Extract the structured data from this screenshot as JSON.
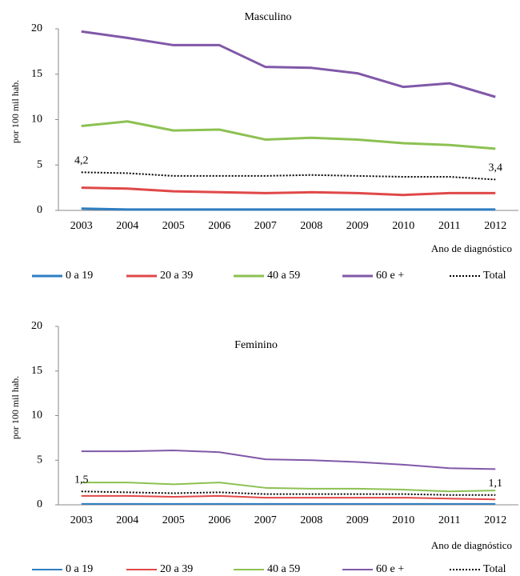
{
  "chart_data": [
    {
      "type": "line",
      "title": "Masculino",
      "y_label": "por 100 mil hab.",
      "x_label": "Ano de diagnóstico",
      "categories": [
        "2003",
        "2004",
        "2005",
        "2006",
        "2007",
        "2008",
        "2009",
        "2010",
        "2011",
        "2012"
      ],
      "ylim": [
        0,
        20
      ],
      "yticks": [
        0,
        5,
        10,
        15,
        20
      ],
      "grid": false,
      "series": [
        {
          "name": "0 a 19",
          "color": "#2e7ec2",
          "values": [
            0.2,
            0.1,
            0.1,
            0.1,
            0.1,
            0.1,
            0.1,
            0.1,
            0.1,
            0.1
          ]
        },
        {
          "name": "20 a 39",
          "color": "#e04848",
          "values": [
            2.5,
            2.4,
            2.1,
            2.0,
            1.9,
            2.0,
            1.9,
            1.7,
            1.9,
            1.9
          ]
        },
        {
          "name": "40 a 59",
          "color": "#8cc152",
          "values": [
            9.3,
            9.8,
            8.8,
            8.9,
            7.8,
            8.0,
            7.8,
            7.4,
            7.2,
            6.8
          ]
        },
        {
          "name": "60 e +",
          "color": "#8058a8",
          "values": [
            19.7,
            19.0,
            18.2,
            18.2,
            15.8,
            15.7,
            15.1,
            13.6,
            14.0,
            12.5
          ]
        },
        {
          "name": "Total",
          "color": "#000000",
          "dashed": true,
          "values": [
            4.2,
            4.1,
            3.8,
            3.8,
            3.8,
            3.9,
            3.8,
            3.7,
            3.7,
            3.4
          ],
          "value_labels": [
            "4,2",
            null,
            null,
            null,
            null,
            null,
            null,
            null,
            null,
            "3,4"
          ]
        }
      ]
    },
    {
      "type": "line",
      "title": "Feminino",
      "y_label": "por 100 mil hab.",
      "x_label": "Ano de diagnóstico",
      "categories": [
        "2003",
        "2004",
        "2005",
        "2006",
        "2007",
        "2008",
        "2009",
        "2010",
        "2011",
        "2012"
      ],
      "ylim": [
        0,
        20
      ],
      "yticks": [
        0,
        5,
        10,
        15,
        20
      ],
      "grid": false,
      "series": [
        {
          "name": "0 a 19",
          "color": "#2e7ec2",
          "values": [
            0.1,
            0.1,
            0.1,
            0.1,
            0.1,
            0.1,
            0.1,
            0.1,
            0.1,
            0.1
          ]
        },
        {
          "name": "20 a 39",
          "color": "#e04848",
          "values": [
            1.0,
            1.0,
            0.9,
            1.0,
            0.8,
            0.8,
            0.8,
            0.8,
            0.7,
            0.6
          ]
        },
        {
          "name": "40 a 59",
          "color": "#8cc152",
          "values": [
            2.5,
            2.5,
            2.3,
            2.5,
            1.9,
            1.8,
            1.8,
            1.7,
            1.5,
            1.6
          ]
        },
        {
          "name": "60 e +",
          "color": "#8058a8",
          "values": [
            6.0,
            6.0,
            6.1,
            5.9,
            5.1,
            5.0,
            4.8,
            4.5,
            4.1,
            4.0
          ]
        },
        {
          "name": "Total",
          "color": "#000000",
          "dashed": true,
          "values": [
            1.5,
            1.4,
            1.3,
            1.4,
            1.2,
            1.2,
            1.2,
            1.2,
            1.1,
            1.1
          ],
          "value_labels": [
            "1,5",
            null,
            null,
            null,
            null,
            null,
            null,
            null,
            null,
            "1,1"
          ]
        }
      ]
    }
  ]
}
